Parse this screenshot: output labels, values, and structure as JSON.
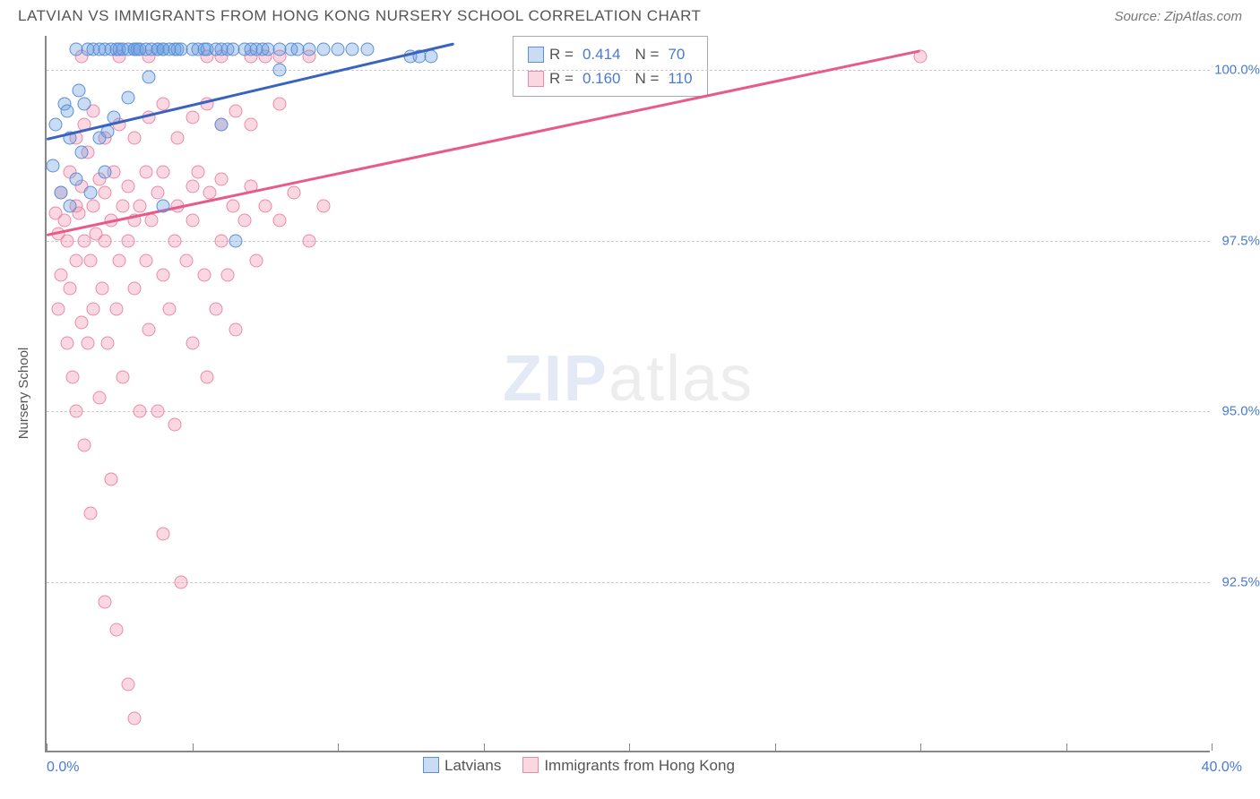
{
  "header": {
    "title": "LATVIAN VS IMMIGRANTS FROM HONG KONG NURSERY SCHOOL CORRELATION CHART",
    "source": "Source: ZipAtlas.com"
  },
  "chart": {
    "type": "scatter",
    "ylabel": "Nursery School",
    "xmin": 0.0,
    "xmax": 40.0,
    "ymin": 90.0,
    "ymax": 100.5,
    "xlabel_min": "0.0%",
    "xlabel_max": "40.0%",
    "yticks": [
      {
        "v": 92.5,
        "label": "92.5%"
      },
      {
        "v": 95.0,
        "label": "95.0%"
      },
      {
        "v": 97.5,
        "label": "97.5%"
      },
      {
        "v": 100.0,
        "label": "100.0%"
      }
    ],
    "xticks": [
      0,
      5,
      10,
      15,
      20,
      25,
      30,
      35,
      40
    ],
    "marker_size": 15,
    "series": [
      {
        "name": "Latvians",
        "fill": "rgba(99,155,224,0.35)",
        "stroke": "#5b8fd6",
        "line_color": "#3863c0",
        "R": "0.414",
        "N": "70",
        "trend": {
          "x1": 0.0,
          "y1": 99.0,
          "x2": 14.0,
          "y2": 100.4
        },
        "points": [
          [
            0.2,
            98.6
          ],
          [
            0.3,
            99.2
          ],
          [
            0.5,
            98.2
          ],
          [
            0.6,
            99.5
          ],
          [
            0.8,
            98.0
          ],
          [
            0.8,
            99.0
          ],
          [
            1.0,
            98.4
          ],
          [
            1.0,
            100.3
          ],
          [
            1.2,
            98.8
          ],
          [
            1.3,
            99.5
          ],
          [
            1.4,
            100.3
          ],
          [
            1.5,
            98.2
          ],
          [
            1.6,
            100.3
          ],
          [
            1.8,
            99.0
          ],
          [
            1.8,
            100.3
          ],
          [
            2.0,
            98.5
          ],
          [
            2.0,
            100.3
          ],
          [
            2.2,
            100.3
          ],
          [
            2.3,
            99.3
          ],
          [
            2.4,
            100.3
          ],
          [
            2.5,
            100.3
          ],
          [
            2.6,
            100.3
          ],
          [
            2.8,
            100.3
          ],
          [
            2.8,
            99.6
          ],
          [
            3.0,
            100.3
          ],
          [
            3.0,
            100.3
          ],
          [
            3.1,
            100.3
          ],
          [
            3.2,
            100.3
          ],
          [
            3.4,
            100.3
          ],
          [
            3.5,
            99.9
          ],
          [
            3.6,
            100.3
          ],
          [
            3.8,
            100.3
          ],
          [
            3.8,
            100.3
          ],
          [
            4.0,
            100.3
          ],
          [
            4.0,
            100.3
          ],
          [
            4.2,
            100.3
          ],
          [
            4.4,
            100.3
          ],
          [
            4.5,
            100.3
          ],
          [
            4.6,
            100.3
          ],
          [
            5.0,
            100.3
          ],
          [
            5.2,
            100.3
          ],
          [
            5.4,
            100.3
          ],
          [
            5.5,
            100.3
          ],
          [
            5.8,
            100.3
          ],
          [
            6.0,
            100.3
          ],
          [
            6.0,
            99.2
          ],
          [
            6.2,
            100.3
          ],
          [
            6.4,
            100.3
          ],
          [
            6.5,
            97.5
          ],
          [
            6.8,
            100.3
          ],
          [
            7.0,
            100.3
          ],
          [
            7.2,
            100.3
          ],
          [
            7.4,
            100.3
          ],
          [
            7.6,
            100.3
          ],
          [
            8.0,
            100.3
          ],
          [
            8.0,
            100.0
          ],
          [
            8.4,
            100.3
          ],
          [
            8.6,
            100.3
          ],
          [
            9.0,
            100.3
          ],
          [
            9.5,
            100.3
          ],
          [
            10.0,
            100.3
          ],
          [
            10.5,
            100.3
          ],
          [
            11.0,
            100.3
          ],
          [
            12.5,
            100.2
          ],
          [
            12.8,
            100.2
          ],
          [
            13.2,
            100.2
          ],
          [
            4.0,
            98.0
          ],
          [
            2.1,
            99.1
          ],
          [
            1.1,
            99.7
          ],
          [
            0.7,
            99.4
          ]
        ]
      },
      {
        "name": "Immigants from Hong Kong",
        "label": "Immigrants from Hong Kong",
        "fill": "rgba(240,140,170,0.35)",
        "stroke": "#e88bab",
        "line_color": "#e85a8a",
        "R": "0.160",
        "N": "110",
        "trend": {
          "x1": 0.0,
          "y1": 97.6,
          "x2": 30.0,
          "y2": 100.3
        },
        "points": [
          [
            0.3,
            97.9
          ],
          [
            0.4,
            97.6
          ],
          [
            0.4,
            96.5
          ],
          [
            0.5,
            98.2
          ],
          [
            0.5,
            97.0
          ],
          [
            0.6,
            97.8
          ],
          [
            0.7,
            96.0
          ],
          [
            0.7,
            97.5
          ],
          [
            0.8,
            98.5
          ],
          [
            0.8,
            96.8
          ],
          [
            0.9,
            95.5
          ],
          [
            1.0,
            97.2
          ],
          [
            1.0,
            98.0
          ],
          [
            1.0,
            95.0
          ],
          [
            1.1,
            97.9
          ],
          [
            1.2,
            96.3
          ],
          [
            1.2,
            98.3
          ],
          [
            1.3,
            94.5
          ],
          [
            1.3,
            97.5
          ],
          [
            1.4,
            98.8
          ],
          [
            1.4,
            96.0
          ],
          [
            1.5,
            97.2
          ],
          [
            1.5,
            93.5
          ],
          [
            1.6,
            98.0
          ],
          [
            1.6,
            96.5
          ],
          [
            1.7,
            97.6
          ],
          [
            1.8,
            95.2
          ],
          [
            1.8,
            98.4
          ],
          [
            1.9,
            96.8
          ],
          [
            2.0,
            97.5
          ],
          [
            2.0,
            92.2
          ],
          [
            2.0,
            98.2
          ],
          [
            2.1,
            96.0
          ],
          [
            2.2,
            97.8
          ],
          [
            2.2,
            94.0
          ],
          [
            2.3,
            98.5
          ],
          [
            2.4,
            96.5
          ],
          [
            2.4,
            91.8
          ],
          [
            2.5,
            97.2
          ],
          [
            2.6,
            98.0
          ],
          [
            2.6,
            95.5
          ],
          [
            2.8,
            97.5
          ],
          [
            2.8,
            91.0
          ],
          [
            2.8,
            98.3
          ],
          [
            3.0,
            96.8
          ],
          [
            3.0,
            97.8
          ],
          [
            3.0,
            90.5
          ],
          [
            3.2,
            98.0
          ],
          [
            3.2,
            95.0
          ],
          [
            3.4,
            97.2
          ],
          [
            3.4,
            98.5
          ],
          [
            3.5,
            96.2
          ],
          [
            3.6,
            97.8
          ],
          [
            3.8,
            95.0
          ],
          [
            3.8,
            98.2
          ],
          [
            4.0,
            93.2
          ],
          [
            4.0,
            97.0
          ],
          [
            4.0,
            98.5
          ],
          [
            4.2,
            96.5
          ],
          [
            4.4,
            97.5
          ],
          [
            4.4,
            94.8
          ],
          [
            4.5,
            98.0
          ],
          [
            4.6,
            92.5
          ],
          [
            4.8,
            97.2
          ],
          [
            5.0,
            98.3
          ],
          [
            5.0,
            96.0
          ],
          [
            5.0,
            97.8
          ],
          [
            5.2,
            98.5
          ],
          [
            5.4,
            97.0
          ],
          [
            5.5,
            95.5
          ],
          [
            5.6,
            98.2
          ],
          [
            5.8,
            96.5
          ],
          [
            6.0,
            97.5
          ],
          [
            6.0,
            98.4
          ],
          [
            6.2,
            97.0
          ],
          [
            6.4,
            98.0
          ],
          [
            6.5,
            96.2
          ],
          [
            6.8,
            97.8
          ],
          [
            7.0,
            98.3
          ],
          [
            7.0,
            100.2
          ],
          [
            7.2,
            97.2
          ],
          [
            7.5,
            98.0
          ],
          [
            7.5,
            100.2
          ],
          [
            8.0,
            97.8
          ],
          [
            8.0,
            100.2
          ],
          [
            8.5,
            98.2
          ],
          [
            9.0,
            97.5
          ],
          [
            9.0,
            100.2
          ],
          [
            9.5,
            98.0
          ],
          [
            1.0,
            99.0
          ],
          [
            1.3,
            99.2
          ],
          [
            1.6,
            99.4
          ],
          [
            2.0,
            99.0
          ],
          [
            2.5,
            99.2
          ],
          [
            3.0,
            99.0
          ],
          [
            3.5,
            99.3
          ],
          [
            4.0,
            99.5
          ],
          [
            4.5,
            99.0
          ],
          [
            5.0,
            99.3
          ],
          [
            5.5,
            99.5
          ],
          [
            6.0,
            99.2
          ],
          [
            6.5,
            99.4
          ],
          [
            7.0,
            99.2
          ],
          [
            8.0,
            99.5
          ],
          [
            1.2,
            100.2
          ],
          [
            2.5,
            100.2
          ],
          [
            3.5,
            100.2
          ],
          [
            5.5,
            100.2
          ],
          [
            6.0,
            100.2
          ],
          [
            30.0,
            100.2
          ]
        ]
      }
    ],
    "watermark": {
      "bold": "ZIP",
      "light": "atlas"
    }
  }
}
